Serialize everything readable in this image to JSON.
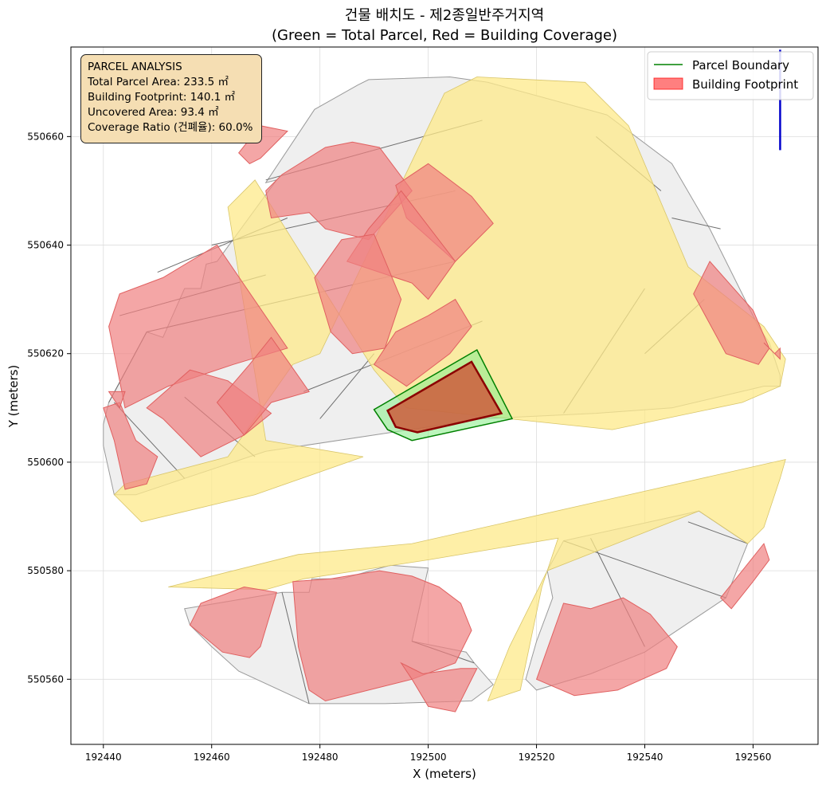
{
  "chart_data": {
    "type": "map",
    "title": "건물 배치도 - 제2종일반주거지역",
    "subtitle": "(Green = Total Parcel, Red = Building Coverage)",
    "xlabel": "X (meters)",
    "ylabel": "Y (meters)",
    "xlim": [
      192434,
      192572
    ],
    "ylim": [
      550548,
      550676.5
    ],
    "xticks": [
      192440,
      192460,
      192480,
      192500,
      192520,
      192540,
      192560
    ],
    "yticks": [
      550560,
      550580,
      550600,
      550620,
      550640,
      550660
    ],
    "grid": true,
    "legend_position": "top-right",
    "legend": [
      {
        "label": "Parcel Boundary",
        "color": "#008000",
        "kind": "line"
      },
      {
        "label": "Building Footprint",
        "color": "#ff0000",
        "kind": "patch"
      }
    ],
    "info_box": {
      "heading": "PARCEL ANALYSIS",
      "total_area": "Total Parcel Area: 233.5 ㎡",
      "footprint": "Building Footprint: 140.1 ㎡",
      "uncovered": "Uncovered Area: 93.4 ㎡",
      "coverage": "Coverage Ratio (건폐율): 60.0%"
    },
    "colors": {
      "road": "#fde98a",
      "context_parcel": "#efefef",
      "building": "#f08080",
      "target_parcel": "#90ee90",
      "target_building": "#cd5c3c",
      "north_arrow": "#0000cc"
    },
    "target_parcel": [
      [
        192490,
        550609.7
      ],
      [
        192492.5,
        550606
      ],
      [
        192497,
        550604
      ],
      [
        192515.5,
        550608
      ],
      [
        192509,
        550620.7
      ]
    ],
    "target_building": [
      [
        192492.5,
        550609.5
      ],
      [
        192494,
        550606.5
      ],
      [
        192498,
        550605.5
      ],
      [
        192513.5,
        550609
      ],
      [
        192508,
        550618.5
      ]
    ],
    "context_parcels": [
      [
        [
          192441,
          550611
        ],
        [
          192448,
          550624
        ],
        [
          192451,
          550623
        ],
        [
          192455,
          550632
        ],
        [
          192458,
          550632
        ],
        [
          192459,
          550636.5
        ],
        [
          192461,
          550637
        ],
        [
          192472,
          550652
        ],
        [
          192470,
          550651.5
        ],
        [
          192479,
          550665
        ],
        [
          192487,
          550669.5
        ],
        [
          192489,
          550670.5
        ],
        [
          192504,
          550671
        ],
        [
          192511,
          550670
        ],
        [
          192533,
          550664
        ],
        [
          192545,
          550655
        ],
        [
          192552,
          550643
        ],
        [
          192561,
          550625
        ],
        [
          192563,
          550622
        ],
        [
          192565,
          550616
        ],
        [
          192565,
          550614
        ],
        [
          192562,
          550614
        ],
        [
          192545,
          550610
        ],
        [
          192531,
          550609
        ],
        [
          192510,
          550608
        ],
        [
          192470,
          550602
        ],
        [
          192455,
          550597
        ],
        [
          192446,
          550594
        ],
        [
          192442,
          550594
        ],
        [
          192440,
          550603
        ],
        [
          192440,
          550607
        ]
      ],
      [
        [
          192455,
          550573
        ],
        [
          192473,
          550576
        ],
        [
          192478,
          550576
        ],
        [
          192478.5,
          550578.5
        ],
        [
          192484,
          550578.5
        ],
        [
          192493,
          550581
        ],
        [
          192500,
          550580.5
        ],
        [
          192497,
          550567
        ],
        [
          192507,
          550565
        ],
        [
          192508.5,
          550563
        ],
        [
          192512,
          550559
        ],
        [
          192508,
          550556
        ],
        [
          192492,
          550555.5
        ],
        [
          192478,
          550555.5
        ],
        [
          192465,
          550561.5
        ],
        [
          192460,
          550566
        ],
        [
          192456,
          550570
        ]
      ],
      [
        [
          192525,
          550585.5
        ],
        [
          192550,
          550591
        ],
        [
          192559,
          550585
        ],
        [
          192555,
          550575
        ],
        [
          192540,
          550565
        ],
        [
          192530,
          550561
        ],
        [
          192520,
          550558
        ],
        [
          192518,
          550560
        ],
        [
          192520,
          550567
        ],
        [
          192523,
          550575
        ],
        [
          192522,
          550580
        ]
      ]
    ],
    "parcel_lines": [
      [
        [
          192441,
          550611
        ],
        [
          192448,
          550624
        ]
      ],
      [
        [
          192443,
          550627
        ],
        [
          192470,
          550634.5
        ]
      ],
      [
        [
          192450,
          550635
        ],
        [
          192474,
          550645
        ]
      ],
      [
        [
          192460,
          550640
        ],
        [
          192505,
          550650
        ]
      ],
      [
        [
          192470,
          550652
        ],
        [
          192510,
          550663
        ]
      ],
      [
        [
          192448,
          550624
        ],
        [
          192505,
          550637
        ]
      ],
      [
        [
          192477,
          550613
        ],
        [
          192510,
          550626
        ]
      ],
      [
        [
          192455,
          550597
        ],
        [
          192442,
          550611
        ]
      ],
      [
        [
          192468,
          550601
        ],
        [
          192455,
          550612
        ]
      ],
      [
        [
          192480,
          550608
        ],
        [
          192490,
          550620
        ]
      ],
      [
        [
          192525,
          550609
        ],
        [
          192540,
          550632
        ]
      ],
      [
        [
          192540,
          550620
        ],
        [
          192551,
          550630
        ]
      ],
      [
        [
          192531,
          550660
        ],
        [
          192543,
          550650
        ]
      ],
      [
        [
          192545,
          550645
        ],
        [
          192554,
          550643
        ]
      ],
      [
        [
          192525,
          550585.5
        ],
        [
          192555,
          550575
        ]
      ],
      [
        [
          192530,
          550586
        ],
        [
          192540,
          550566
        ]
      ],
      [
        [
          192548,
          550589
        ],
        [
          192559,
          550585
        ]
      ],
      [
        [
          192473,
          550576
        ],
        [
          192478,
          550555.5
        ]
      ],
      [
        [
          192497,
          550567
        ],
        [
          192508.5,
          550563
        ]
      ]
    ],
    "roads": [
      [
        [
          192463,
          550647
        ],
        [
          192468,
          550652
        ],
        [
          192490,
          550617
        ],
        [
          192496,
          550610
        ],
        [
          192534,
          550606
        ],
        [
          192558,
          550611
        ],
        [
          192565,
          550614
        ],
        [
          192566,
          550619
        ],
        [
          192562,
          550625
        ],
        [
          192548,
          550636
        ],
        [
          192537,
          550662
        ],
        [
          192529,
          550670
        ],
        [
          192509,
          550671
        ],
        [
          192503,
          550668
        ],
        [
          192480,
          550620
        ],
        [
          192475,
          550618
        ],
        [
          192463,
          550601
        ],
        [
          192444,
          550596
        ],
        [
          192442,
          550594
        ],
        [
          192447,
          550589
        ],
        [
          192468,
          550594
        ],
        [
          192488,
          550601
        ],
        [
          192470,
          550604
        ]
      ],
      [
        [
          192452,
          550577
        ],
        [
          192476,
          550583
        ],
        [
          192497,
          550585
        ],
        [
          192566,
          550600.5
        ],
        [
          192565,
          550597
        ],
        [
          192562,
          550588
        ],
        [
          192559,
          550585
        ],
        [
          192550,
          550591
        ],
        [
          192522,
          550580
        ],
        [
          192515,
          550566
        ],
        [
          192511,
          550556
        ],
        [
          192517,
          550558
        ],
        [
          192521,
          550577
        ],
        [
          192524,
          550586
        ],
        [
          192500,
          550582
        ],
        [
          192477,
          550578.5
        ],
        [
          192470,
          550576.5
        ]
      ]
    ],
    "buildings": [
      [
        [
          192441,
          550625
        ],
        [
          192443,
          550631
        ],
        [
          192451,
          550634
        ],
        [
          192461,
          550640
        ],
        [
          192474,
          550621
        ],
        [
          192464,
          550618
        ],
        [
          192452,
          550614
        ],
        [
          192444,
          550610
        ]
      ],
      [
        [
          192448,
          550610
        ],
        [
          192451,
          550608
        ],
        [
          192458,
          550601
        ],
        [
          192466,
          550605
        ],
        [
          192471,
          550609
        ],
        [
          192463,
          550615
        ],
        [
          192456,
          550617
        ]
      ],
      [
        [
          192461,
          550611
        ],
        [
          192467,
          550618
        ],
        [
          192471,
          550623
        ],
        [
          192478,
          550613
        ],
        [
          192471,
          550611
        ],
        [
          192466,
          550605
        ]
      ],
      [
        [
          192440,
          550610
        ],
        [
          192441,
          550607
        ],
        [
          192442,
          550604
        ],
        [
          192444,
          550595
        ],
        [
          192448,
          550596
        ],
        [
          192450,
          550601
        ],
        [
          192446,
          550604
        ],
        [
          192443,
          550611
        ]
      ],
      [
        [
          192470,
          550650
        ],
        [
          192473,
          550653
        ],
        [
          192481,
          550658
        ],
        [
          192486,
          550659
        ],
        [
          192491,
          550658
        ],
        [
          192497,
          550650
        ],
        [
          192489,
          550641
        ],
        [
          192481,
          550643
        ],
        [
          192478,
          550646
        ],
        [
          192471,
          550645
        ]
      ],
      [
        [
          192494,
          550651
        ],
        [
          192496,
          550645
        ],
        [
          192505,
          550637
        ],
        [
          192512,
          550644
        ],
        [
          192508,
          550649
        ],
        [
          192500,
          550655
        ]
      ],
      [
        [
          192489,
          550643
        ],
        [
          192495,
          550650
        ],
        [
          192505,
          550637
        ],
        [
          192500,
          550630
        ],
        [
          192497,
          550633
        ],
        [
          192485,
          550637
        ]
      ],
      [
        [
          192479,
          550634
        ],
        [
          192484,
          550641
        ],
        [
          192490,
          550642
        ],
        [
          192495,
          550630
        ],
        [
          192492,
          550621
        ],
        [
          192486,
          550620
        ],
        [
          192482,
          550624
        ]
      ],
      [
        [
          192494,
          550624
        ],
        [
          192500,
          550627
        ],
        [
          192505,
          550630
        ],
        [
          192508,
          550625
        ],
        [
          192504,
          550620
        ],
        [
          192496,
          550614
        ],
        [
          192490,
          550618
        ]
      ],
      [
        [
          192467,
          550655
        ],
        [
          192469,
          550656
        ],
        [
          192474,
          550661
        ],
        [
          192469,
          550662
        ],
        [
          192465,
          550657
        ]
      ],
      [
        [
          192552,
          550637
        ],
        [
          192560,
          550628
        ],
        [
          192563,
          550621
        ],
        [
          192561,
          550618
        ],
        [
          192555,
          550620
        ],
        [
          192549,
          550631
        ]
      ],
      [
        [
          192562,
          550622
        ],
        [
          192564,
          550620
        ],
        [
          192565,
          550621
        ],
        [
          192565,
          550619
        ]
      ],
      [
        [
          192441,
          550613
        ],
        [
          192443,
          550610
        ],
        [
          192444,
          550613
        ]
      ],
      [
        [
          192456,
          550570
        ],
        [
          192462,
          550565
        ],
        [
          192467,
          550564
        ],
        [
          192469,
          550566
        ],
        [
          192472,
          550576
        ],
        [
          192466,
          550577
        ],
        [
          192458,
          550574
        ]
      ],
      [
        [
          192475,
          550578
        ],
        [
          192482,
          550578.5
        ],
        [
          192491,
          550580
        ],
        [
          192497,
          550579
        ],
        [
          192502,
          550577
        ],
        [
          192506,
          550574
        ],
        [
          192508,
          550569
        ],
        [
          192505,
          550563
        ],
        [
          192497,
          550560
        ],
        [
          192489,
          550558
        ],
        [
          192481,
          550556
        ],
        [
          192478,
          550558
        ],
        [
          192476,
          550566
        ]
      ],
      [
        [
          192495,
          550563
        ],
        [
          192499,
          550561
        ],
        [
          192506,
          550562
        ],
        [
          192509,
          550562
        ],
        [
          192505,
          550554
        ],
        [
          192500,
          550555
        ],
        [
          192497,
          550560
        ]
      ],
      [
        [
          192520,
          550560
        ],
        [
          192527,
          550557
        ],
        [
          192535,
          550558
        ],
        [
          192544,
          550562
        ],
        [
          192546,
          550566
        ],
        [
          192541,
          550572
        ],
        [
          192536,
          550575
        ],
        [
          192530,
          550573
        ],
        [
          192525,
          550574
        ]
      ],
      [
        [
          192554,
          550575
        ],
        [
          192562,
          550585
        ],
        [
          192563,
          550582
        ],
        [
          192560,
          550578
        ],
        [
          192556,
          550573
        ]
      ]
    ],
    "north_arrow": [
      [
        192565,
        550676
      ],
      [
        192565,
        550657.5
      ]
    ]
  }
}
